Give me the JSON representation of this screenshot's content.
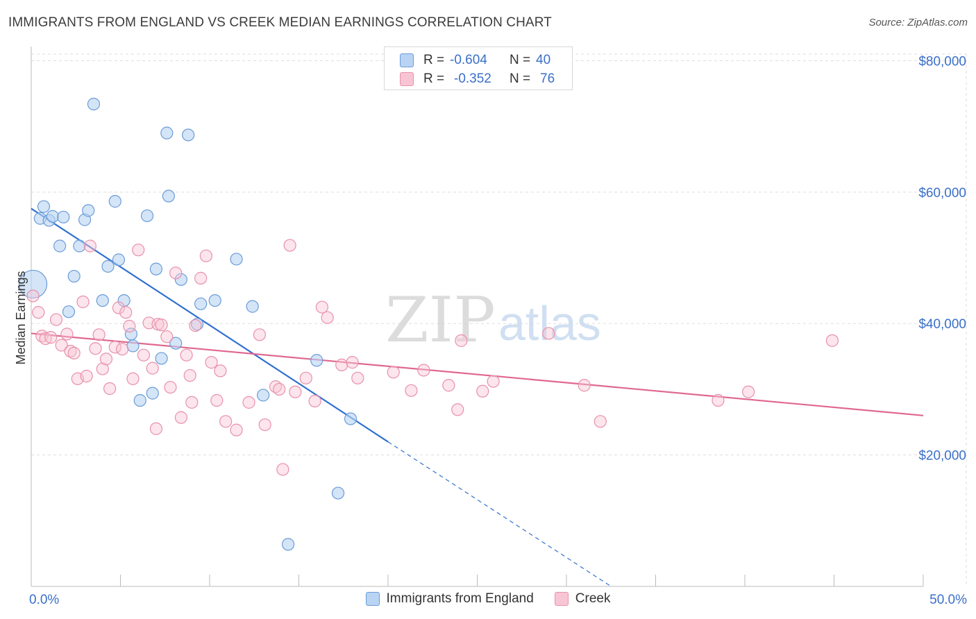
{
  "title": "IMMIGRANTS FROM ENGLAND VS CREEK MEDIAN EARNINGS CORRELATION CHART",
  "source": "Source: ZipAtlas.com",
  "watermark": {
    "zip": "ZIP",
    "atlas": "atlas"
  },
  "legend": {
    "series": [
      {
        "name": "Immigrants from England",
        "r_label": "R =",
        "r_value": "-0.604",
        "n_label": "N =",
        "n_value": "40",
        "fill": "#b8d4f2",
        "stroke": "#6b9bd8"
      },
      {
        "name": "Creek",
        "r_label": "R =",
        "r_value": "-0.352",
        "n_label": "N =",
        "n_value": "76",
        "fill": "#f8c5d5",
        "stroke": "#e890ab"
      }
    ]
  },
  "colors": {
    "blue_line": "#3070d0",
    "pink_line": "#e06890",
    "axis_label": "#3a6fc8",
    "grid": "#dddddd"
  },
  "chart_data": {
    "type": "scatter",
    "title": "IMMIGRANTS FROM ENGLAND VS CREEK MEDIAN EARNINGS CORRELATION CHART",
    "xlabel": "",
    "ylabel": "Median Earnings",
    "xlim": [
      0,
      50
    ],
    "ylim": [
      0,
      81000
    ],
    "x_tick_labels": [
      {
        "value": 0,
        "label": "0.0%"
      },
      {
        "value": 50,
        "label": "50.0%"
      }
    ],
    "y_ticks": [
      {
        "value": 20000,
        "label": "$20,000"
      },
      {
        "value": 40000,
        "label": "$40,000"
      },
      {
        "value": 60000,
        "label": "$60,000"
      },
      {
        "value": 80000,
        "label": "$80,000"
      }
    ],
    "series": [
      {
        "name": "Immigrants from England",
        "points": [
          [
            0.1,
            46000
          ],
          [
            0.5,
            56000
          ],
          [
            0.7,
            57800
          ],
          [
            1.0,
            55700
          ],
          [
            1.2,
            56300
          ],
          [
            1.6,
            51800
          ],
          [
            1.8,
            56200
          ],
          [
            2.1,
            41800
          ],
          [
            2.4,
            47200
          ],
          [
            2.7,
            51800
          ],
          [
            3.0,
            55800
          ],
          [
            3.2,
            57200
          ],
          [
            3.5,
            73400
          ],
          [
            4.0,
            43500
          ],
          [
            4.3,
            48700
          ],
          [
            4.7,
            58600
          ],
          [
            4.9,
            49700
          ],
          [
            5.2,
            43500
          ],
          [
            5.6,
            38400
          ],
          [
            5.7,
            36600
          ],
          [
            6.1,
            28300
          ],
          [
            6.5,
            56400
          ],
          [
            6.8,
            29400
          ],
          [
            7.0,
            48300
          ],
          [
            7.3,
            34700
          ],
          [
            7.6,
            69000
          ],
          [
            7.7,
            59400
          ],
          [
            8.1,
            37000
          ],
          [
            8.4,
            46700
          ],
          [
            8.8,
            68700
          ],
          [
            9.3,
            39900
          ],
          [
            9.5,
            43000
          ],
          [
            10.3,
            43500
          ],
          [
            11.5,
            49800
          ],
          [
            12.4,
            42600
          ],
          [
            13.0,
            29100
          ],
          [
            16.0,
            34400
          ],
          [
            17.2,
            14200
          ],
          [
            17.9,
            25500
          ],
          [
            14.4,
            6400
          ]
        ],
        "trend": {
          "x0": 0,
          "y0": 57500,
          "x1": 20,
          "y1": 22000,
          "dashed_to_x": 32.5,
          "dashed_to_y": 0
        }
      },
      {
        "name": "Creek",
        "points": [
          [
            0.1,
            44200
          ],
          [
            0.4,
            41700
          ],
          [
            0.6,
            38100
          ],
          [
            0.8,
            37700
          ],
          [
            1.1,
            37900
          ],
          [
            1.4,
            40600
          ],
          [
            1.7,
            36700
          ],
          [
            2.0,
            38400
          ],
          [
            2.2,
            35800
          ],
          [
            2.4,
            35500
          ],
          [
            2.6,
            31600
          ],
          [
            2.9,
            43300
          ],
          [
            3.1,
            32000
          ],
          [
            3.3,
            51800
          ],
          [
            3.6,
            36200
          ],
          [
            3.8,
            38300
          ],
          [
            4.0,
            33100
          ],
          [
            4.2,
            34600
          ],
          [
            4.4,
            30100
          ],
          [
            4.7,
            36400
          ],
          [
            4.9,
            42400
          ],
          [
            5.1,
            36100
          ],
          [
            5.3,
            41700
          ],
          [
            5.5,
            39600
          ],
          [
            5.7,
            31600
          ],
          [
            6.0,
            51200
          ],
          [
            6.3,
            35200
          ],
          [
            6.6,
            40100
          ],
          [
            6.8,
            33200
          ],
          [
            7.1,
            39900
          ],
          [
            7.3,
            39800
          ],
          [
            7.6,
            38000
          ],
          [
            7.8,
            30300
          ],
          [
            8.1,
            47700
          ],
          [
            8.4,
            25700
          ],
          [
            8.7,
            35200
          ],
          [
            8.9,
            32100
          ],
          [
            9.2,
            39700
          ],
          [
            9.5,
            46900
          ],
          [
            9.8,
            50300
          ],
          [
            10.1,
            34100
          ],
          [
            10.4,
            28300
          ],
          [
            10.6,
            32800
          ],
          [
            10.9,
            25100
          ],
          [
            11.5,
            23800
          ],
          [
            12.2,
            28000
          ],
          [
            12.8,
            38300
          ],
          [
            13.1,
            24600
          ],
          [
            13.7,
            30400
          ],
          [
            14.1,
            17800
          ],
          [
            14.5,
            51900
          ],
          [
            14.8,
            29600
          ],
          [
            15.4,
            31700
          ],
          [
            15.9,
            28200
          ],
          [
            16.3,
            42500
          ],
          [
            16.6,
            40900
          ],
          [
            17.4,
            33700
          ],
          [
            18.0,
            34100
          ],
          [
            18.3,
            31700
          ],
          [
            20.3,
            32600
          ],
          [
            21.3,
            29800
          ],
          [
            22.0,
            32900
          ],
          [
            23.4,
            30600
          ],
          [
            23.9,
            26900
          ],
          [
            24.1,
            37400
          ],
          [
            25.3,
            29700
          ],
          [
            25.9,
            31200
          ],
          [
            29.0,
            38500
          ],
          [
            31.0,
            30600
          ],
          [
            31.9,
            25100
          ],
          [
            38.5,
            28300
          ],
          [
            40.2,
            29600
          ],
          [
            44.9,
            37400
          ],
          [
            13.9,
            30000
          ],
          [
            7.0,
            24000
          ],
          [
            9.0,
            28000
          ]
        ],
        "trend": {
          "x0": 0,
          "y0": 38500,
          "x1": 50,
          "y1": 26000
        }
      }
    ]
  }
}
